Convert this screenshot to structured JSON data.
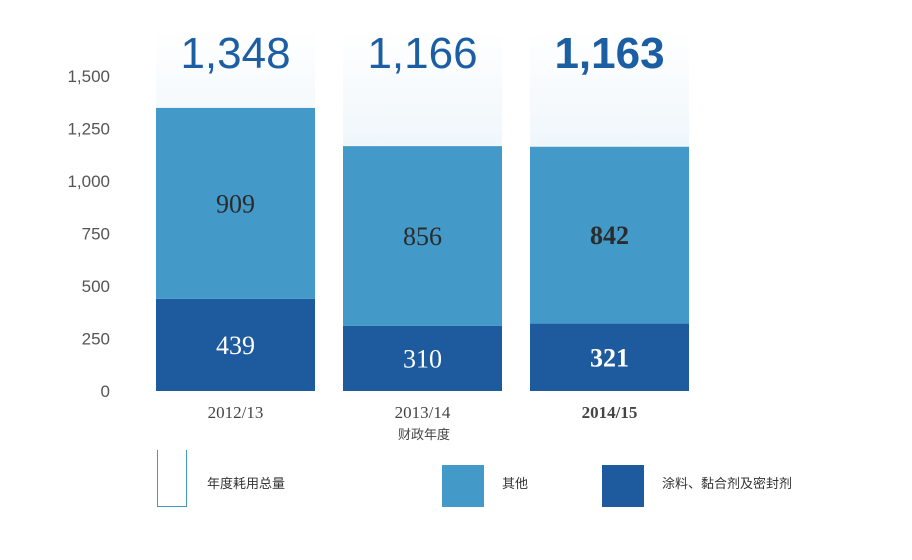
{
  "chart_data": {
    "type": "bar",
    "stacked": true,
    "categories": [
      "2012/13",
      "2013/14",
      "2014/15"
    ],
    "highlight_index": 2,
    "xlabel": "财政年度",
    "ylim": [
      0,
      1500
    ],
    "yticks": [
      "0",
      "250",
      "500",
      "750",
      "1,000",
      "1,250",
      "1,500"
    ],
    "totals": [
      1348,
      1166,
      1163
    ],
    "total_labels": [
      "1,348",
      "1,166",
      "1,163"
    ],
    "series": [
      {
        "name": "涂料、黏合剂及密封剂",
        "values": [
          439,
          310,
          321
        ],
        "color": "#1d5a9e"
      },
      {
        "name": "其他",
        "values": [
          909,
          856,
          842
        ],
        "color": "#4399c8"
      }
    ],
    "total_series_name": "年度耗用总量",
    "total_gradient_color": "#cfe4f3"
  }
}
